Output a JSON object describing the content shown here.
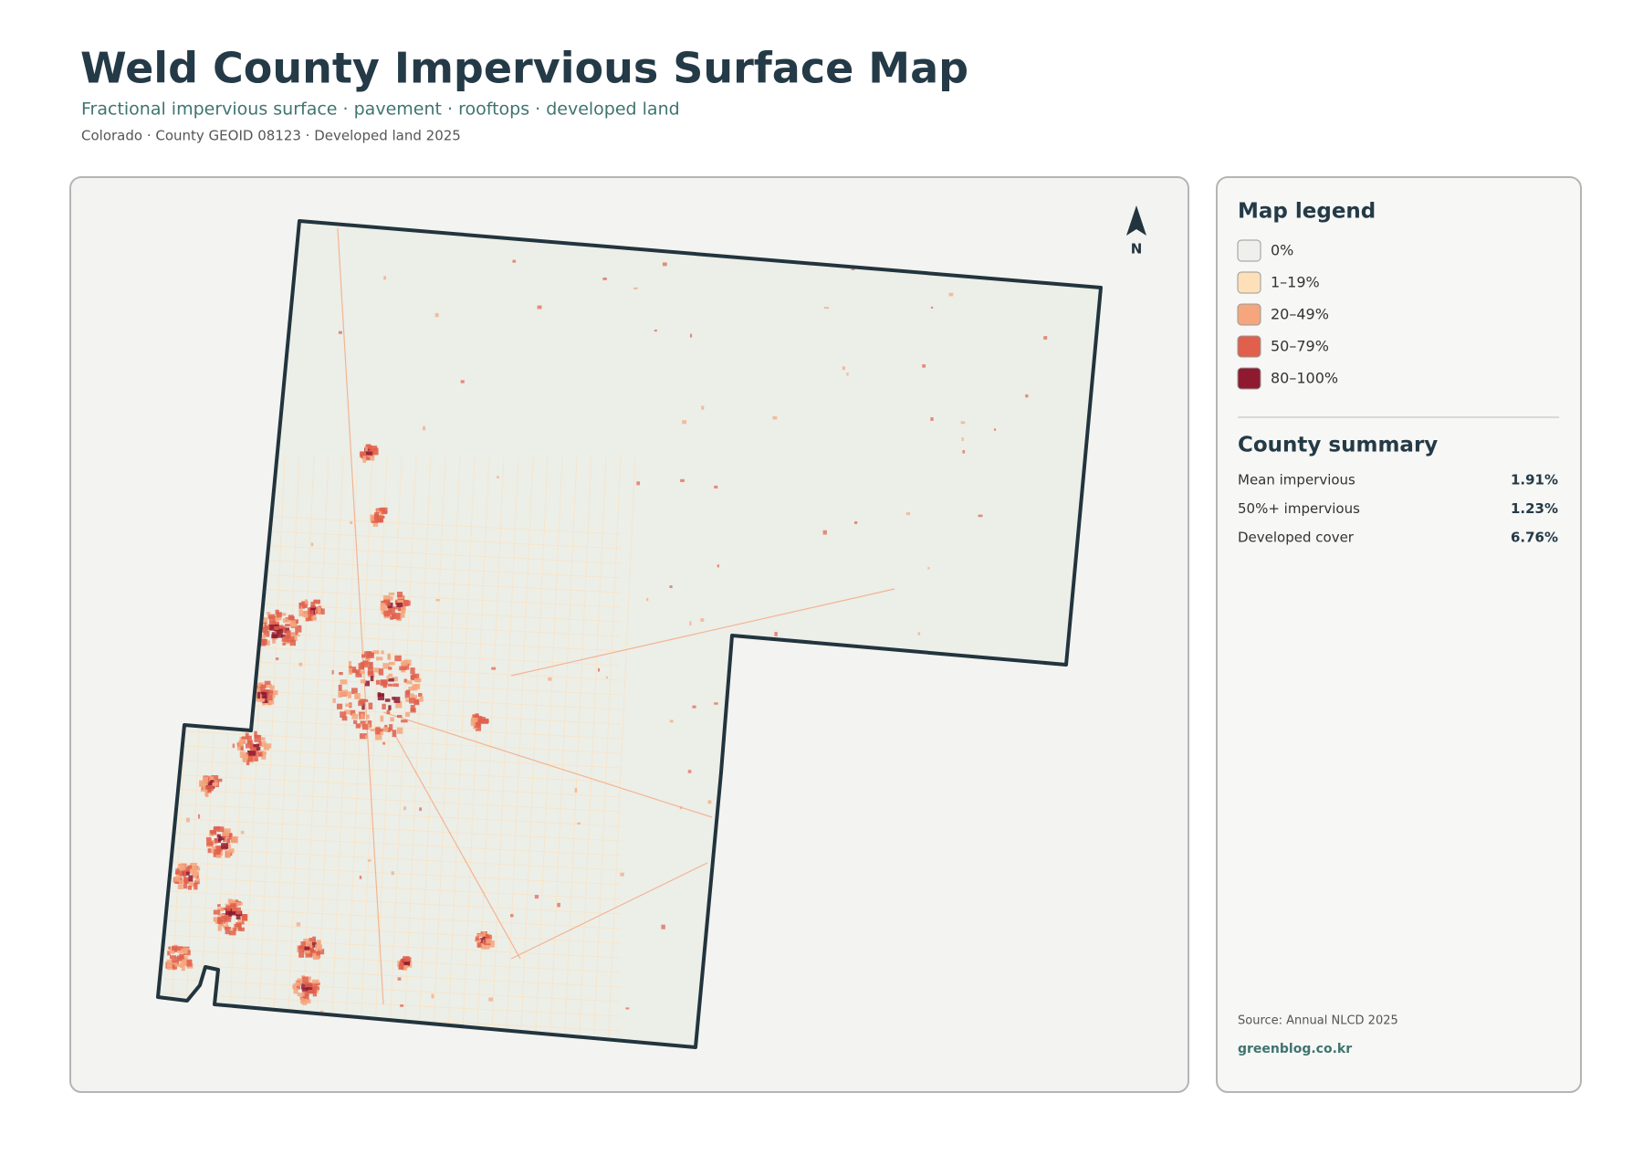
{
  "header": {
    "title": "Weld County Impervious Surface Map",
    "subtitle": "Fractional impervious surface · pavement · rooftops · developed land",
    "meta": "Colorado · County GEOID 08123 · Developed land 2025"
  },
  "north": "N",
  "legend": {
    "title": "Map legend",
    "items": [
      {
        "label": "0%",
        "color": "#efefec"
      },
      {
        "label": "1–19%",
        "color": "#fde0b8"
      },
      {
        "label": "20–49%",
        "color": "#f5a67c"
      },
      {
        "label": "50–79%",
        "color": "#e0604c"
      },
      {
        "label": "80–100%",
        "color": "#8f1a30"
      }
    ]
  },
  "summary": {
    "title": "County summary",
    "rows": [
      {
        "label": "Mean impervious",
        "value": "1.91%"
      },
      {
        "label": "50%+ impervious",
        "value": "1.23%"
      },
      {
        "label": "Developed cover",
        "value": "6.76%"
      }
    ]
  },
  "source": "Source: Annual NLCD 2025",
  "credit": "greenblog.co.kr"
}
